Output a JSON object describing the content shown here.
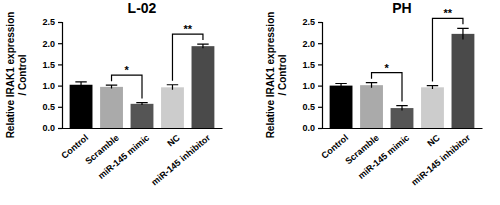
{
  "chart_data": [
    {
      "type": "bar",
      "title": "L-02",
      "y_label": [
        "Relative IRAK1 expression",
        "/ Control"
      ],
      "categories": [
        "Control",
        "Scramble",
        "miR-145 mimic",
        "NC",
        "miR-145 inhibitor"
      ],
      "values": [
        1.02,
        0.97,
        0.57,
        0.96,
        1.93
      ],
      "errors": [
        0.07,
        0.04,
        0.03,
        0.06,
        0.05
      ],
      "colors": [
        "#000000",
        "#aaaaaa",
        "#555555",
        "#cccccc",
        "#4a4a4a"
      ],
      "ylim": [
        0,
        2.5
      ],
      "yticks": [
        {
          "value": 0,
          "label": "0.0"
        },
        {
          "value": 0.5,
          "label": "0.5"
        },
        {
          "value": 1,
          "label": "1.0"
        },
        {
          "value": 1.5,
          "label": "1.5"
        },
        {
          "value": 2,
          "label": "2.0"
        },
        {
          "value": 2.5,
          "label": "2.5"
        }
      ],
      "annotations": [
        {
          "text": "*",
          "from": "Scramble",
          "to": "miR-145 mimic"
        },
        {
          "text": "**",
          "from": "NC",
          "to": "miR-145 inhibitor"
        }
      ]
    },
    {
      "type": "bar",
      "title": "PH",
      "y_label": [
        "Relative IRAK1 expression",
        "/ Control"
      ],
      "categories": [
        "Control",
        "Scramble",
        "miR-145 mimic",
        "NC",
        "miR-145 inhibitor"
      ],
      "values": [
        1.0,
        1.01,
        0.47,
        0.96,
        2.22
      ],
      "errors": [
        0.05,
        0.06,
        0.06,
        0.04,
        0.13
      ],
      "colors": [
        "#000000",
        "#aaaaaa",
        "#555555",
        "#cccccc",
        "#4a4a4a"
      ],
      "ylim": [
        0,
        2.5
      ],
      "yticks": [
        {
          "value": 0,
          "label": "0.0"
        },
        {
          "value": 0.5,
          "label": "0.5"
        },
        {
          "value": 1,
          "label": "1.0"
        },
        {
          "value": 1.5,
          "label": "1.5"
        },
        {
          "value": 2,
          "label": "2.0"
        },
        {
          "value": 2.5,
          "label": "2.5"
        }
      ],
      "annotations": [
        {
          "text": "*",
          "from": "Scramble",
          "to": "miR-145 mimic"
        },
        {
          "text": "**",
          "from": "NC",
          "to": "miR-145 inhibitor"
        }
      ]
    }
  ]
}
